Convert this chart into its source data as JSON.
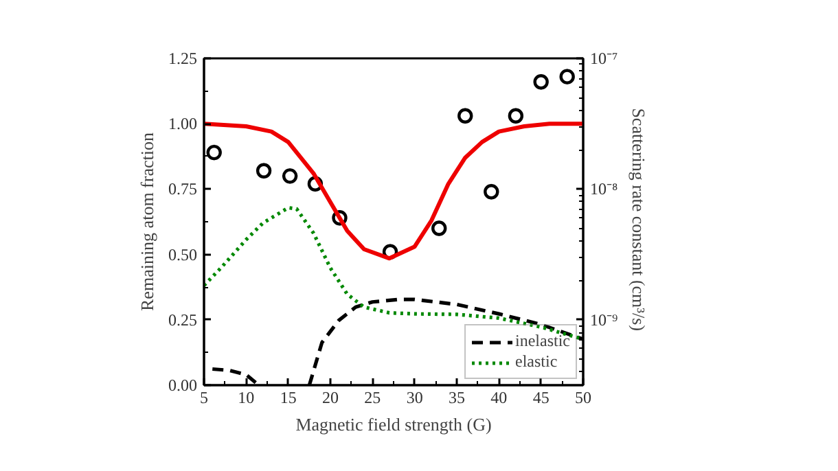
{
  "chart_data": {
    "type": "line",
    "xlabel": "Magnetic field strength (G)",
    "ylabel": "Remaining atom fraction",
    "y2label": "Scattering rate constant  (cm³/s)",
    "xlim": [
      5,
      50
    ],
    "xticks": [
      5,
      10,
      15,
      20,
      25,
      30,
      35,
      40,
      45,
      50
    ],
    "ylim": [
      0,
      1.25
    ],
    "yticks": [
      {
        "value": 0,
        "label": "0.00"
      },
      {
        "value": 0.25,
        "label": "0.25"
      },
      {
        "value": 0.5,
        "label": "0.50"
      },
      {
        "value": 0.75,
        "label": "0.75"
      },
      {
        "value": 1,
        "label": "1.00"
      },
      {
        "value": 1.25,
        "label": "1.25"
      }
    ],
    "y2lim": [
      3.16e-10,
      1e-07
    ],
    "y2ticks": [
      {
        "value": 1e-09,
        "label": "10⁻⁹"
      },
      {
        "value": 1e-08,
        "label": "10⁻⁸"
      },
      {
        "value": 1e-07,
        "label": "10⁻⁷"
      }
    ],
    "log": "y2",
    "grid": false,
    "legend": "bottom right",
    "series": [
      {
        "type": "scatter",
        "color": "#000000",
        "marker": "circle",
        "x": [
          6.2,
          12.1,
          15.2,
          18.2,
          21.1,
          27.1,
          32.9,
          36.0,
          39.1,
          42.0,
          45.0,
          48.1
        ],
        "values": [
          0.89,
          0.82,
          0.8,
          0.77,
          0.64,
          0.51,
          0.6,
          1.03,
          0.74,
          1.03,
          1.16,
          1.18
        ],
        "errors": [
          0.03,
          0.03,
          0.03,
          0.03,
          0.03,
          0.03,
          0.03,
          0.03,
          0.03,
          0.03,
          0.03,
          0.03
        ]
      },
      {
        "color": "#ee0000",
        "line_style": "solid",
        "x": [
          5,
          10,
          13,
          15,
          18,
          20,
          22,
          24,
          27,
          30,
          32,
          34,
          36,
          38,
          40,
          43,
          46,
          50
        ],
        "values": [
          1.0,
          0.99,
          0.97,
          0.93,
          0.81,
          0.7,
          0.59,
          0.52,
          0.485,
          0.53,
          0.63,
          0.77,
          0.87,
          0.93,
          0.97,
          0.99,
          1.0,
          1.0
        ]
      },
      {
        "name": "inelastic",
        "axis": "y2",
        "color": "#000000",
        "line_style": "dashed",
        "x": [
          6,
          8,
          10,
          11.5,
          14,
          17.5,
          19,
          21,
          23,
          25,
          28,
          30,
          35,
          40,
          45,
          50
        ],
        "values": [
          4.2e-10,
          4.1e-10,
          3.8e-10,
          3.16e-10,
          null,
          3.16e-10,
          6.7e-10,
          9.9e-10,
          1.25e-09,
          1.37e-09,
          1.43e-09,
          1.43e-09,
          1.31e-09,
          1.11e-09,
          9.2e-10,
          7.1e-10
        ]
      },
      {
        "name": "elastic",
        "axis": "y2",
        "color": "#008800",
        "line_style": "dotted",
        "x": [
          5,
          7,
          10,
          12,
          15,
          16,
          18,
          20,
          22,
          24,
          27,
          30,
          35,
          40,
          45,
          50
        ],
        "values": [
          1.83e-09,
          2.49e-09,
          4.1e-09,
          5.5e-09,
          7.2e-09,
          7.05e-09,
          4.6e-09,
          2.49e-09,
          1.57e-09,
          1.25e-09,
          1.13e-09,
          1.11e-09,
          1.1e-09,
          1.03e-09,
          8.8e-10,
          7.1e-10
        ]
      }
    ]
  }
}
